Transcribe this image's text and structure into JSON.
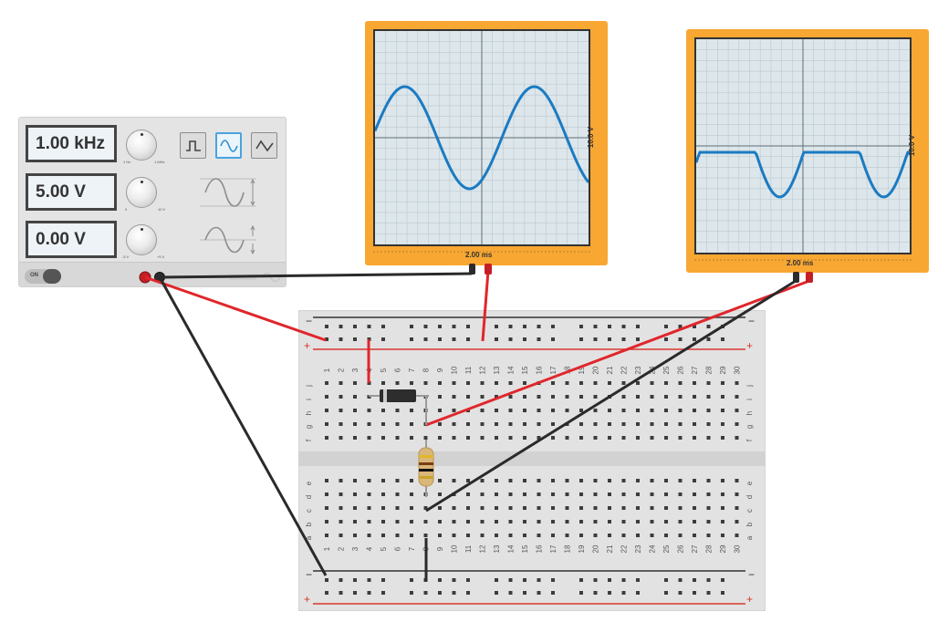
{
  "function_generator": {
    "frequency_display": "1.00 kHz",
    "amplitude_display": "5.00 V",
    "offset_display": "0.00 V",
    "frequency_knob": {
      "min_label": "1 Hz",
      "max_label": "1 MHz"
    },
    "amplitude_knob": {
      "min_label": "0",
      "max_label": "10 V"
    },
    "offset_knob": {
      "min_label": "-5 V",
      "max_label": "+5 V"
    },
    "waveforms": [
      "square",
      "sine",
      "triangle"
    ],
    "selected_waveform": "sine",
    "power_label": "ON",
    "power_on": true
  },
  "oscilloscope_1": {
    "time_per_div": "2.00 ms",
    "volts_per_div": "10.0 V",
    "trace": "sine"
  },
  "oscilloscope_2": {
    "time_per_div": "2.00 ms",
    "volts_per_div": "10.0 V",
    "trace": "clipped-sine"
  },
  "breadboard": {
    "columns": 30,
    "rows_top": [
      "j",
      "i",
      "h",
      "g",
      "f"
    ],
    "rows_bottom": [
      "e",
      "d",
      "c",
      "b",
      "a"
    ],
    "rail_plus": "+",
    "rail_minus": "−"
  },
  "colors": {
    "scope_body": "#f8a733",
    "trace": "#1a7bc2",
    "wire_red": "#e0262b",
    "wire_black": "#2a2a2a",
    "rail_red": "#d9362e",
    "rail_black": "#333333"
  }
}
